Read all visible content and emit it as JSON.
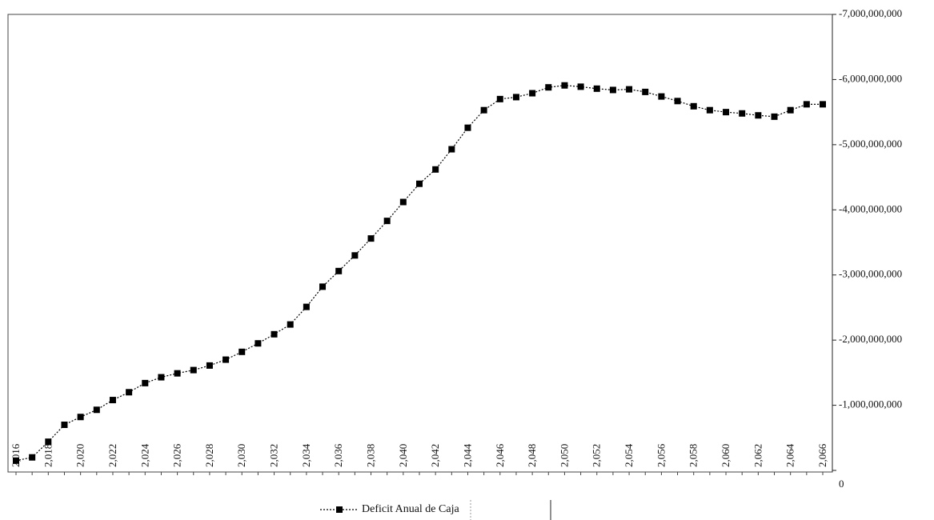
{
  "chart_data": {
    "type": "line",
    "categories": [
      "2,016",
      null,
      "2,018",
      null,
      "2,020",
      null,
      "2,022",
      null,
      "2,024",
      null,
      "2,026",
      null,
      "2,028",
      null,
      "2,030",
      null,
      "2,032",
      null,
      "2,034",
      null,
      "2,036",
      null,
      "2,038",
      null,
      "2,040",
      null,
      "2,042",
      null,
      "2,044",
      null,
      "2,046",
      null,
      "2,048",
      null,
      "2,050",
      null,
      "2,052",
      null,
      "2,054",
      null,
      "2,056",
      null,
      "2,058",
      null,
      "2,060",
      null,
      "2,062",
      null,
      "2,064",
      null,
      "2,066"
    ],
    "series": [
      {
        "name": "Deficit Anual de Caja",
        "color": "#000000",
        "values": [
          -150000000,
          -200000000,
          -440000000,
          -700000000,
          -820000000,
          -930000000,
          -1080000000,
          -1200000000,
          -1340000000,
          -1430000000,
          -1490000000,
          -1540000000,
          -1610000000,
          -1700000000,
          -1820000000,
          -1950000000,
          -2090000000,
          -2240000000,
          -2510000000,
          -2820000000,
          -3060000000,
          -3300000000,
          -3560000000,
          -3830000000,
          -4120000000,
          -4400000000,
          -4620000000,
          -4930000000,
          -5260000000,
          -5530000000,
          -5700000000,
          -5730000000,
          -5790000000,
          -5880000000,
          -5910000000,
          -5890000000,
          -5860000000,
          -5840000000,
          -5850000000,
          -5810000000,
          -5740000000,
          -5670000000,
          -5590000000,
          -5530000000,
          -5500000000,
          -5480000000,
          -5450000000,
          -5430000000,
          -5530000000,
          -5620000000,
          -5620000000
        ]
      }
    ],
    "ylim": [
      0,
      -7000000000
    ],
    "yticks": [
      0,
      {
        "value": -1000000000,
        "label": "-1,000,000,000"
      },
      {
        "value": -2000000000,
        "label": "-2,000,000,000"
      },
      {
        "value": -3000000000,
        "label": "-3,000,000,000"
      },
      {
        "value": -4000000000,
        "label": "-4,000,000,000"
      },
      {
        "value": -5000000000,
        "label": "-5,000,000,000"
      },
      {
        "value": -6000000000,
        "label": "-6,000,000,000"
      },
      {
        "value": -7000000000,
        "label": "-7,000,000,000"
      }
    ],
    "legend": "bottom"
  }
}
